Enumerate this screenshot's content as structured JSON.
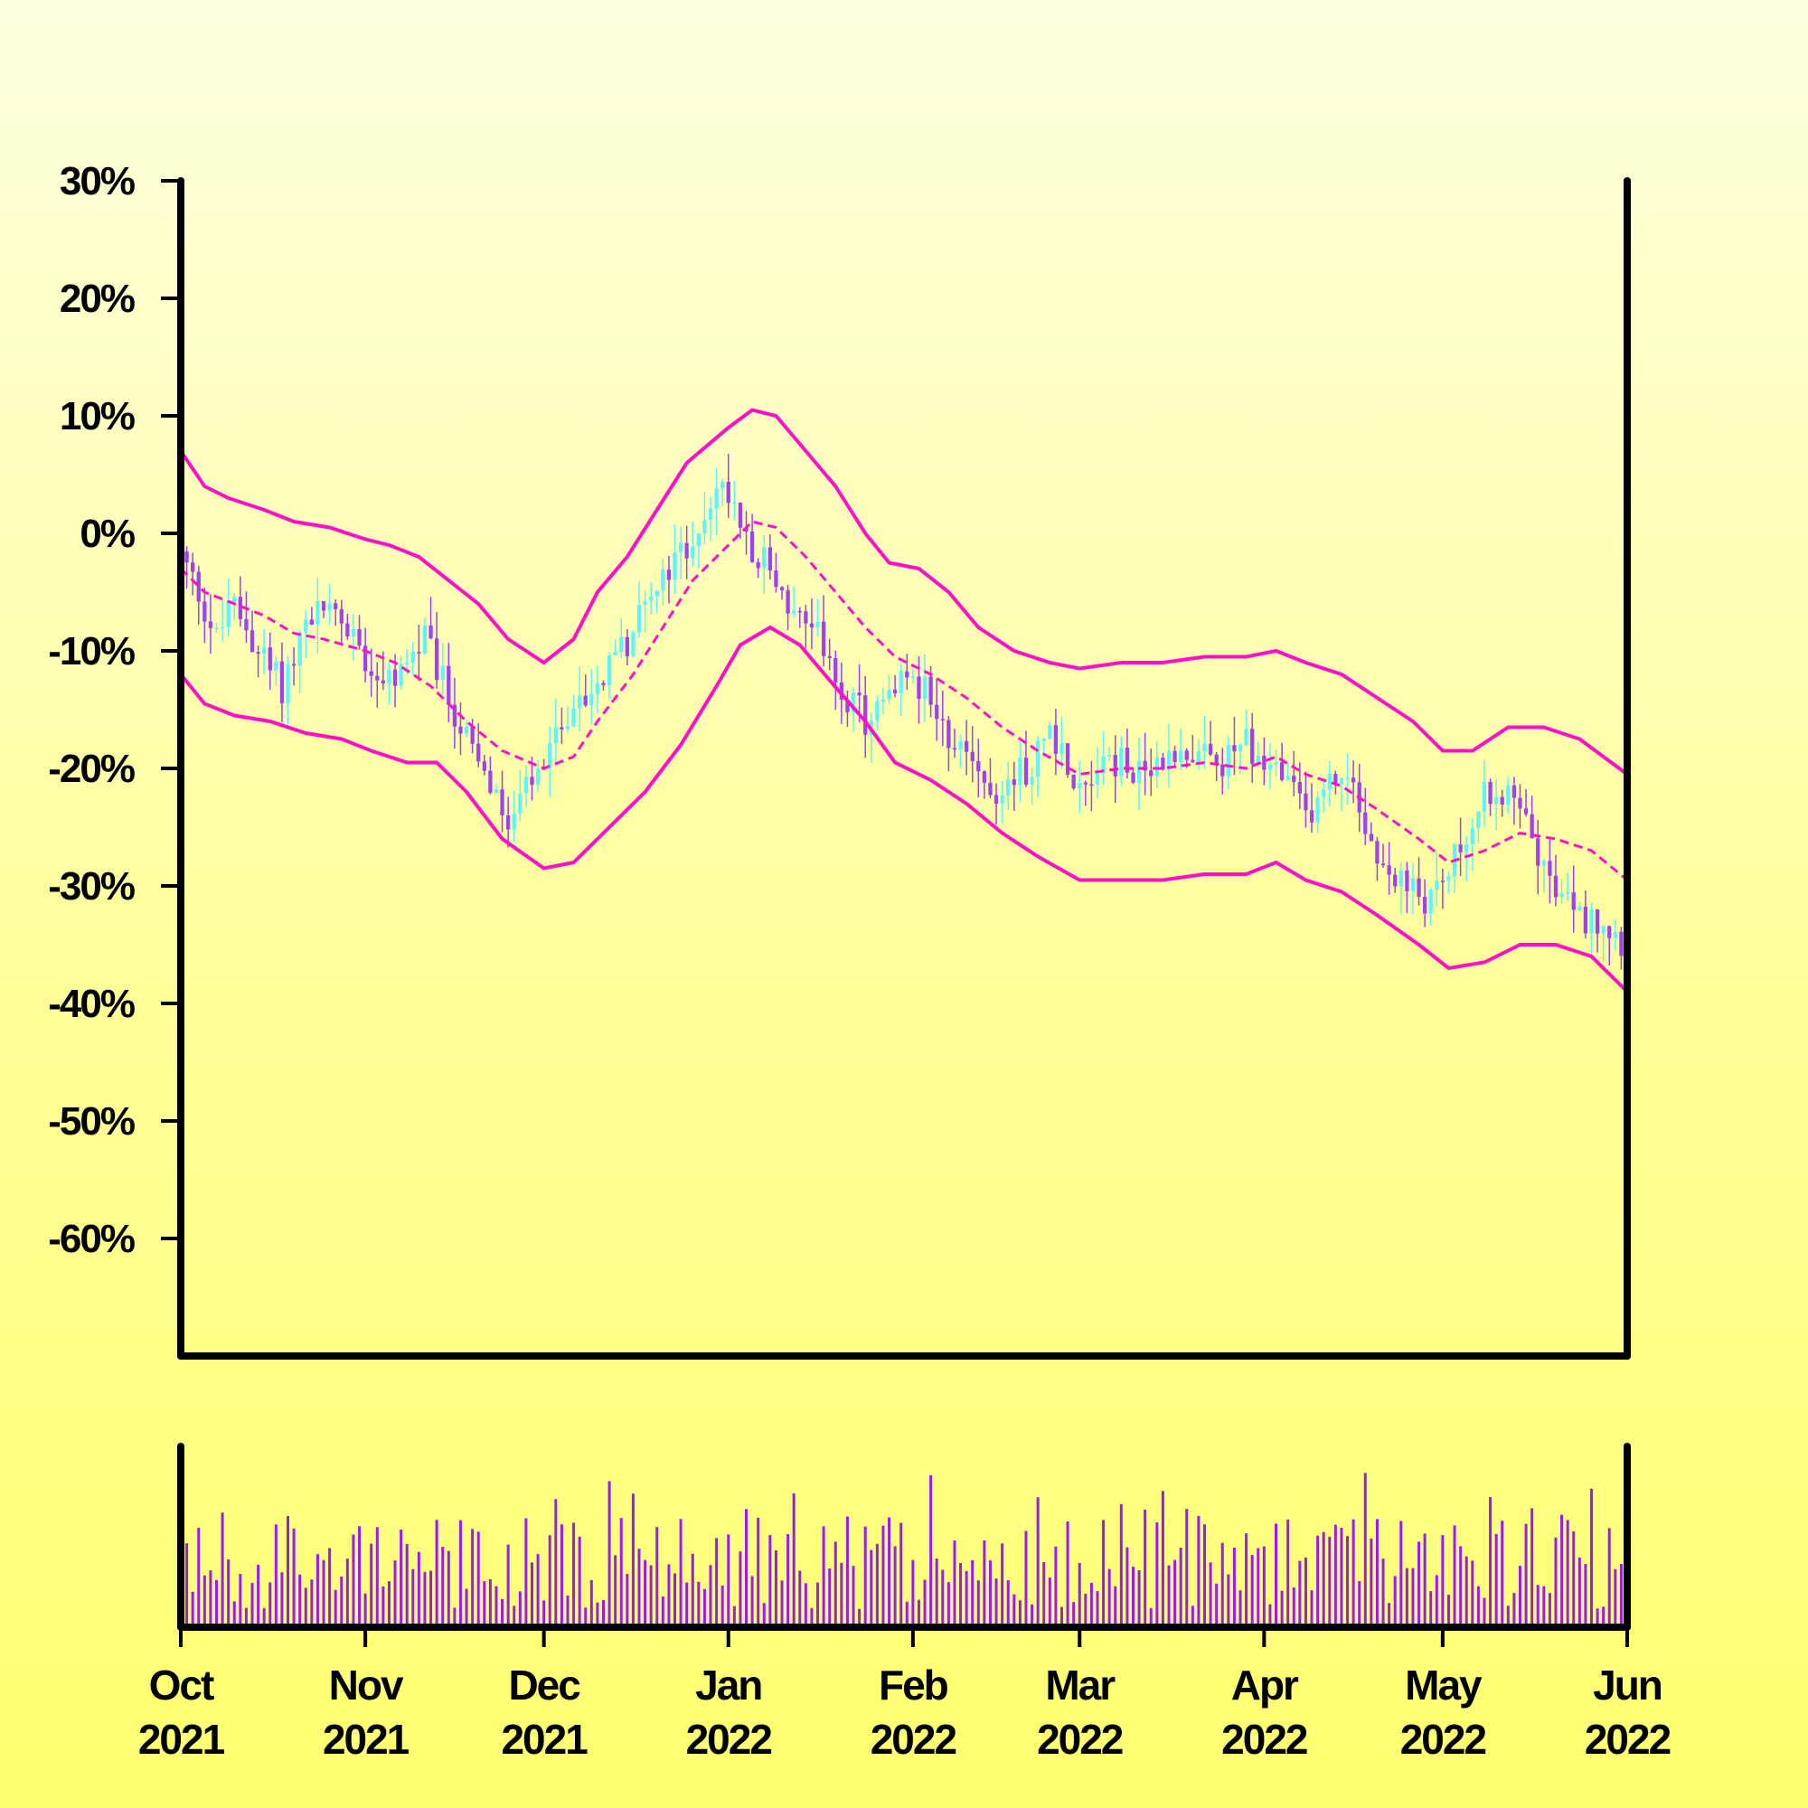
{
  "colors": {
    "band": "#ff10c8",
    "up_candle": "#5ff3ff",
    "down_candle": "#a040f0",
    "volume": "#9a1cf0",
    "axis": "#000000"
  },
  "chart_data": {
    "type": "candlestick",
    "title": "",
    "xlabel": "",
    "ylabel": "",
    "y_unit": "%",
    "ylim": [
      -70,
      30
    ],
    "y_ticks": [
      "30%",
      "20%",
      "10%",
      "0%",
      "-10%",
      "-20%",
      "-30%",
      "-40%",
      "-50%",
      "-60%"
    ],
    "x_range": [
      "2021-10-01",
      "2022-06-01"
    ],
    "x_ticks": [
      {
        "date": "2021-10-01",
        "month": "Oct",
        "year": "2021"
      },
      {
        "date": "2021-11-01",
        "month": "Nov",
        "year": "2021"
      },
      {
        "date": "2021-12-01",
        "month": "Dec",
        "year": "2021"
      },
      {
        "date": "2022-01-01",
        "month": "Jan",
        "year": "2022"
      },
      {
        "date": "2022-02-01",
        "month": "Feb",
        "year": "2022"
      },
      {
        "date": "2022-03-01",
        "month": "Mar",
        "year": "2022"
      },
      {
        "date": "2022-04-01",
        "month": "Apr",
        "year": "2022"
      },
      {
        "date": "2022-05-01",
        "month": "May",
        "year": "2022"
      },
      {
        "date": "2022-06-01",
        "month": "Jun",
        "year": "2022"
      }
    ],
    "grid": false,
    "legend": "none",
    "close_path": [
      [
        "2021-10-01",
        -2
      ],
      [
        "2021-10-04",
        -5
      ],
      [
        "2021-10-07",
        -9
      ],
      [
        "2021-10-10",
        -6
      ],
      [
        "2021-10-14",
        -10
      ],
      [
        "2021-10-18",
        -13
      ],
      [
        "2021-10-21",
        -9
      ],
      [
        "2021-10-25",
        -6
      ],
      [
        "2021-10-29",
        -8
      ],
      [
        "2021-11-02",
        -11
      ],
      [
        "2021-11-05",
        -13
      ],
      [
        "2021-11-08",
        -11
      ],
      [
        "2021-11-11",
        -9
      ],
      [
        "2021-11-15",
        -14
      ],
      [
        "2021-11-20",
        -20
      ],
      [
        "2021-11-25",
        -25
      ],
      [
        "2021-11-28",
        -22
      ],
      [
        "2021-12-01",
        -20
      ],
      [
        "2021-12-05",
        -15
      ],
      [
        "2021-12-10",
        -13
      ],
      [
        "2021-12-15",
        -9
      ],
      [
        "2021-12-20",
        -5
      ],
      [
        "2021-12-25",
        -1
      ],
      [
        "2021-12-29",
        3
      ],
      [
        "2022-01-01",
        4
      ],
      [
        "2022-01-05",
        -1
      ],
      [
        "2022-01-08",
        -3
      ],
      [
        "2022-01-12",
        -7
      ],
      [
        "2022-01-16",
        -9
      ],
      [
        "2022-01-20",
        -13
      ],
      [
        "2022-01-24",
        -16
      ],
      [
        "2022-01-28",
        -14
      ],
      [
        "2022-02-01",
        -12
      ],
      [
        "2022-02-05",
        -15
      ],
      [
        "2022-02-10",
        -20
      ],
      [
        "2022-02-15",
        -22
      ],
      [
        "2022-02-20",
        -20
      ],
      [
        "2022-02-24",
        -17
      ],
      [
        "2022-03-01",
        -21
      ],
      [
        "2022-03-06",
        -19
      ],
      [
        "2022-03-12",
        -21
      ],
      [
        "2022-03-18",
        -18
      ],
      [
        "2022-03-24",
        -20
      ],
      [
        "2022-03-29",
        -18
      ],
      [
        "2022-04-03",
        -20
      ],
      [
        "2022-04-08",
        -24
      ],
      [
        "2022-04-14",
        -20
      ],
      [
        "2022-04-19",
        -26
      ],
      [
        "2022-04-24",
        -30
      ],
      [
        "2022-04-28",
        -31
      ],
      [
        "2022-05-02",
        -29
      ],
      [
        "2022-05-06",
        -24
      ],
      [
        "2022-05-10",
        -21
      ],
      [
        "2022-05-15",
        -24
      ],
      [
        "2022-05-20",
        -31
      ],
      [
        "2022-05-25",
        -33
      ],
      [
        "2022-05-28",
        -33
      ],
      [
        "2022-06-01",
        -35
      ]
    ],
    "bollinger_upper": [
      [
        "2021-10-01",
        7
      ],
      [
        "2021-10-05",
        4
      ],
      [
        "2021-10-09",
        3
      ],
      [
        "2021-10-15",
        2
      ],
      [
        "2021-10-20",
        1
      ],
      [
        "2021-10-26",
        0.5
      ],
      [
        "2021-11-01",
        -0.5
      ],
      [
        "2021-11-05",
        -1
      ],
      [
        "2021-11-10",
        -2
      ],
      [
        "2021-11-15",
        -4
      ],
      [
        "2021-11-20",
        -6
      ],
      [
        "2021-11-25",
        -9
      ],
      [
        "2021-12-01",
        -11
      ],
      [
        "2021-12-06",
        -9
      ],
      [
        "2021-12-10",
        -5
      ],
      [
        "2021-12-15",
        -2
      ],
      [
        "2021-12-20",
        2
      ],
      [
        "2021-12-25",
        6
      ],
      [
        "2022-01-01",
        9
      ],
      [
        "2022-01-05",
        10.5
      ],
      [
        "2022-01-09",
        10
      ],
      [
        "2022-01-14",
        7
      ],
      [
        "2022-01-19",
        4
      ],
      [
        "2022-01-24",
        0
      ],
      [
        "2022-01-28",
        -2.5
      ],
      [
        "2022-02-02",
        -3
      ],
      [
        "2022-02-07",
        -5
      ],
      [
        "2022-02-12",
        -8
      ],
      [
        "2022-02-18",
        -10
      ],
      [
        "2022-02-24",
        -11
      ],
      [
        "2022-03-01",
        -11.5
      ],
      [
        "2022-03-08",
        -11
      ],
      [
        "2022-03-15",
        -11
      ],
      [
        "2022-03-22",
        -10.5
      ],
      [
        "2022-03-29",
        -10.5
      ],
      [
        "2022-04-03",
        -10
      ],
      [
        "2022-04-08",
        -11
      ],
      [
        "2022-04-14",
        -12
      ],
      [
        "2022-04-20",
        -14
      ],
      [
        "2022-04-26",
        -16
      ],
      [
        "2022-05-01",
        -18.5
      ],
      [
        "2022-05-06",
        -18.5
      ],
      [
        "2022-05-12",
        -16.5
      ],
      [
        "2022-05-18",
        -16.5
      ],
      [
        "2022-05-24",
        -17.5
      ],
      [
        "2022-06-01",
        -20.5
      ]
    ],
    "bollinger_middle": [
      [
        "2021-10-01",
        -3
      ],
      [
        "2021-10-05",
        -5
      ],
      [
        "2021-10-10",
        -6
      ],
      [
        "2021-10-15",
        -7
      ],
      [
        "2021-10-20",
        -8.5
      ],
      [
        "2021-10-25",
        -9
      ],
      [
        "2021-11-01",
        -10
      ],
      [
        "2021-11-06",
        -11
      ],
      [
        "2021-11-12",
        -13
      ],
      [
        "2021-11-18",
        -16
      ],
      [
        "2021-11-24",
        -18.5
      ],
      [
        "2021-12-01",
        -20
      ],
      [
        "2021-12-06",
        -19
      ],
      [
        "2021-12-10",
        -16
      ],
      [
        "2021-12-16",
        -12
      ],
      [
        "2021-12-21",
        -8
      ],
      [
        "2021-12-26",
        -4
      ],
      [
        "2022-01-01",
        -1
      ],
      [
        "2022-01-05",
        1
      ],
      [
        "2022-01-09",
        0.5
      ],
      [
        "2022-01-14",
        -2
      ],
      [
        "2022-01-19",
        -5
      ],
      [
        "2022-01-24",
        -8
      ],
      [
        "2022-01-29",
        -10.5
      ],
      [
        "2022-02-04",
        -12
      ],
      [
        "2022-02-10",
        -14
      ],
      [
        "2022-02-16",
        -16.5
      ],
      [
        "2022-02-22",
        -18.5
      ],
      [
        "2022-03-01",
        -20.5
      ],
      [
        "2022-03-08",
        -20
      ],
      [
        "2022-03-15",
        -20
      ],
      [
        "2022-03-22",
        -19.5
      ],
      [
        "2022-03-29",
        -20
      ],
      [
        "2022-04-03",
        -19
      ],
      [
        "2022-04-08",
        -20.5
      ],
      [
        "2022-04-14",
        -21.5
      ],
      [
        "2022-04-20",
        -23.5
      ],
      [
        "2022-04-27",
        -26
      ],
      [
        "2022-05-02",
        -28
      ],
      [
        "2022-05-08",
        -27
      ],
      [
        "2022-05-14",
        -25.5
      ],
      [
        "2022-05-20",
        -26
      ],
      [
        "2022-05-26",
        -27
      ],
      [
        "2022-06-01",
        -29.5
      ]
    ],
    "bollinger_lower": [
      [
        "2021-10-01",
        -12
      ],
      [
        "2021-10-05",
        -14.5
      ],
      [
        "2021-10-10",
        -15.5
      ],
      [
        "2021-10-16",
        -16
      ],
      [
        "2021-10-22",
        -17
      ],
      [
        "2021-10-28",
        -17.5
      ],
      [
        "2021-11-02",
        -18.5
      ],
      [
        "2021-11-08",
        -19.5
      ],
      [
        "2021-11-13",
        -19.5
      ],
      [
        "2021-11-18",
        -22
      ],
      [
        "2021-11-24",
        -26
      ],
      [
        "2021-12-01",
        -28.5
      ],
      [
        "2021-12-06",
        -28
      ],
      [
        "2021-12-12",
        -25
      ],
      [
        "2021-12-18",
        -22
      ],
      [
        "2021-12-24",
        -18
      ],
      [
        "2021-12-30",
        -13
      ],
      [
        "2022-01-03",
        -9.5
      ],
      [
        "2022-01-08",
        -8
      ],
      [
        "2022-01-13",
        -9.5
      ],
      [
        "2022-01-18",
        -12.5
      ],
      [
        "2022-01-24",
        -16
      ],
      [
        "2022-01-29",
        -19.5
      ],
      [
        "2022-02-04",
        -21
      ],
      [
        "2022-02-10",
        -23
      ],
      [
        "2022-02-16",
        -25.5
      ],
      [
        "2022-02-22",
        -27.5
      ],
      [
        "2022-03-01",
        -29.5
      ],
      [
        "2022-03-08",
        -29.5
      ],
      [
        "2022-03-15",
        -29.5
      ],
      [
        "2022-03-22",
        -29
      ],
      [
        "2022-03-29",
        -29
      ],
      [
        "2022-04-03",
        -28
      ],
      [
        "2022-04-08",
        -29.5
      ],
      [
        "2022-04-14",
        -30.5
      ],
      [
        "2022-04-20",
        -32.5
      ],
      [
        "2022-04-27",
        -35
      ],
      [
        "2022-05-02",
        -37
      ],
      [
        "2022-05-08",
        -36.5
      ],
      [
        "2022-05-14",
        -35
      ],
      [
        "2022-05-20",
        -35
      ],
      [
        "2022-05-26",
        -36
      ],
      [
        "2022-06-01",
        -39
      ]
    ]
  }
}
